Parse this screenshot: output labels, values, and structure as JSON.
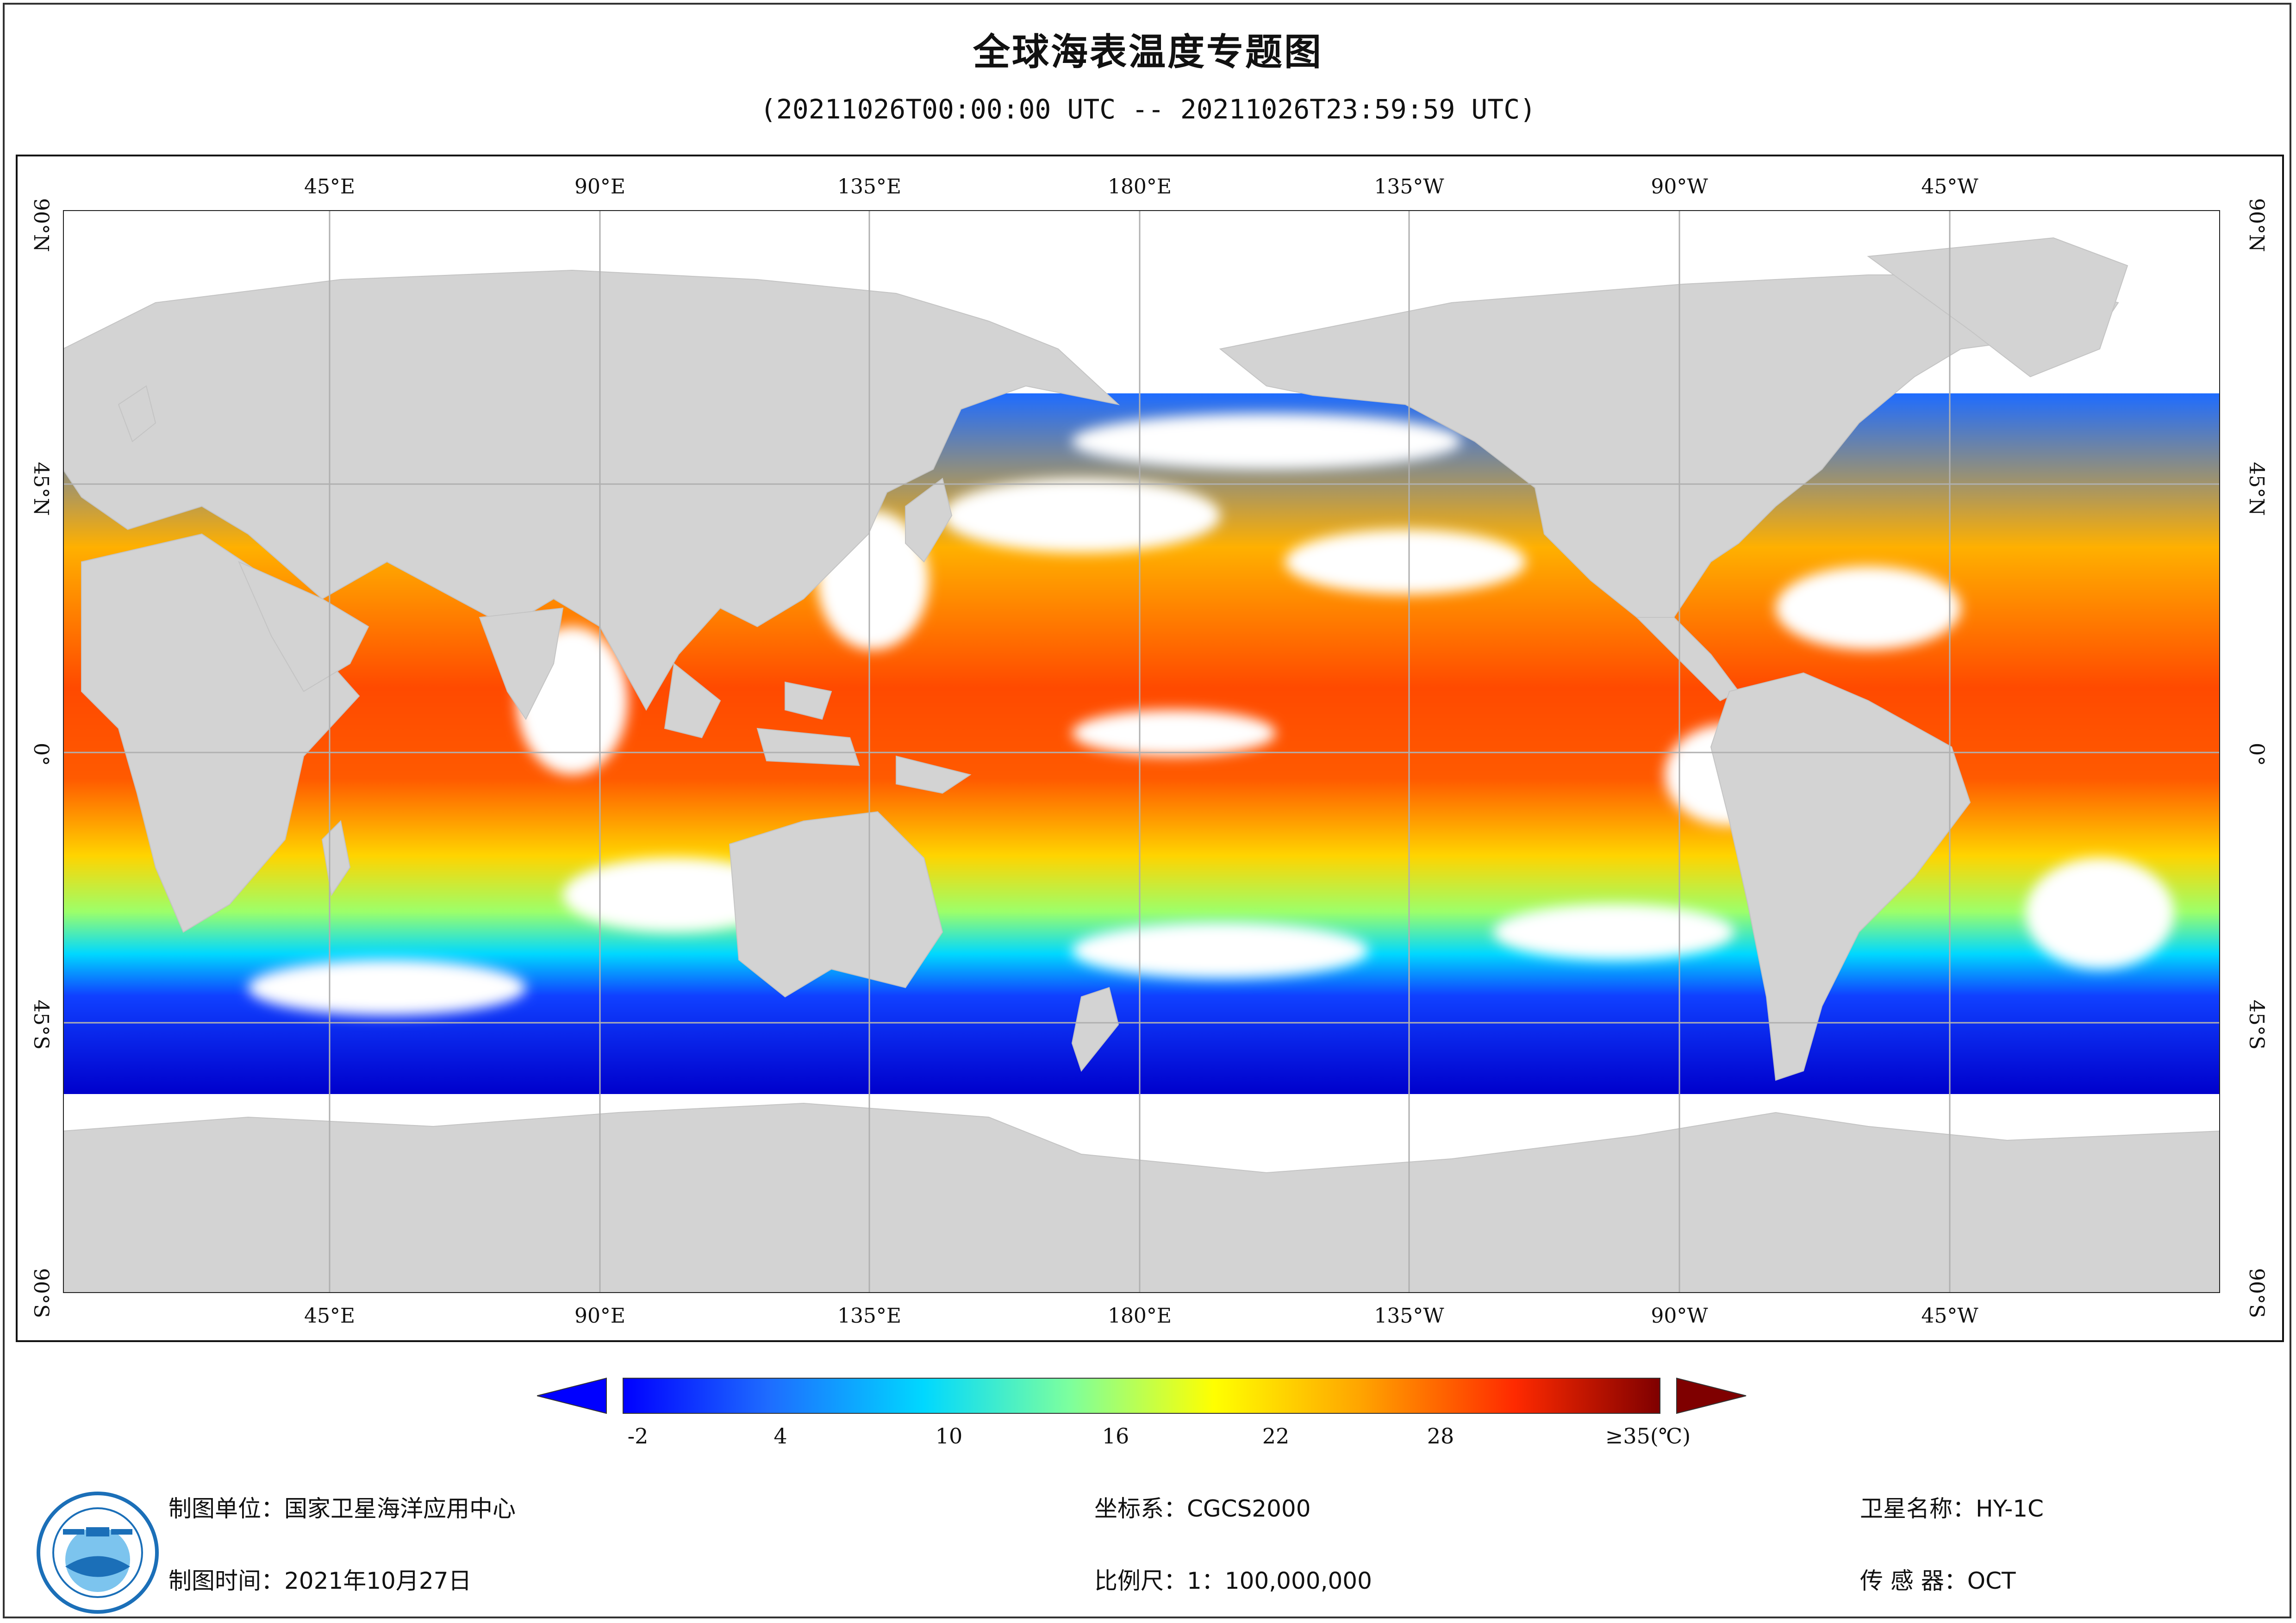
{
  "title": "全球海表温度专题图",
  "time_range": "(20211026T00:00:00 UTC -- 20211026T23:59:59 UTC)",
  "map": {
    "lon_labels_top": [
      "45°E",
      "90°E",
      "135°E",
      "180°E",
      "135°W",
      "90°W",
      "45°W"
    ],
    "lon_labels_bottom": [
      "45°E",
      "90°E",
      "135°E",
      "180°E",
      "135°W",
      "90°W",
      "45°W"
    ],
    "lat_labels_left": [
      "90°N",
      "45°N",
      "0°",
      "45°S",
      "90°S"
    ],
    "lat_labels_right": [
      "90°N",
      "45°N",
      "0°",
      "45°S",
      "90°S"
    ],
    "colors": {
      "land": "#d3d3d3",
      "cloud": "#ffffff",
      "grid": "#b0b0b0"
    }
  },
  "colorbar": {
    "labels": [
      "-2",
      "4",
      "10",
      "16",
      "22",
      "28",
      "≥35(℃)"
    ],
    "unit": "℃",
    "range": [
      -2,
      35
    ],
    "colors": [
      "#0000ff",
      "#1e6cff",
      "#00d8ff",
      "#7cff9e",
      "#ffff00",
      "#ffa500",
      "#ff2a00",
      "#7f0000"
    ]
  },
  "footer": {
    "maker": "制图单位：国家卫星海洋应用中心",
    "date": "制图时间：2021年10月27日",
    "crs": "坐标系：CGCS2000",
    "scale": "比例尺：1：100,000,000",
    "satellite": "卫星名称：HY-1C",
    "sensor": "传 感 器：OCT"
  },
  "logo": {
    "icon": "nsoas-logo-icon"
  }
}
